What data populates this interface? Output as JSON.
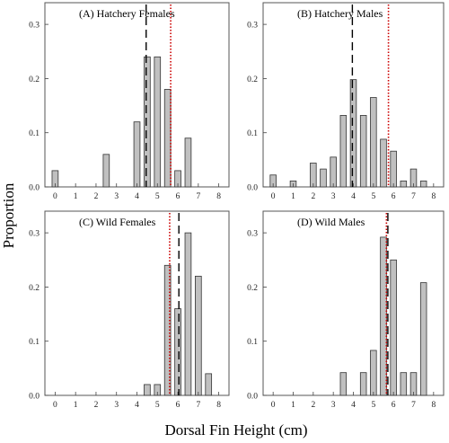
{
  "figure": {
    "ylabel": "Proportion",
    "xlabel": "Dorsal Fin Height (cm)"
  },
  "chart_data": [
    {
      "type": "bar",
      "title": "(A) Hatchery Females",
      "xlim": [
        -0.5,
        8.5
      ],
      "ylim": [
        0,
        0.34
      ],
      "xticks": [
        "0",
        "1",
        "2",
        "3",
        "4",
        "5",
        "6",
        "7",
        "8"
      ],
      "yticks": [
        "0.0",
        "0.1",
        "0.2",
        "0.3"
      ],
      "x": [
        0,
        2.5,
        4,
        4.5,
        5,
        5.5,
        6,
        6.5
      ],
      "values": [
        0.03,
        0.06,
        0.12,
        0.24,
        0.24,
        0.18,
        0.03,
        0.09
      ],
      "vlines": [
        {
          "x": 4.45,
          "style": "dashed",
          "color": "#000000"
        },
        {
          "x": 5.65,
          "style": "dotted",
          "color": "#cc0000"
        }
      ]
    },
    {
      "type": "bar",
      "title": "(B) Hatchery Males",
      "xlim": [
        -0.5,
        8.5
      ],
      "ylim": [
        0,
        0.34
      ],
      "xticks": [
        "0",
        "1",
        "2",
        "3",
        "4",
        "5",
        "6",
        "7",
        "8"
      ],
      "yticks": [
        "0.0",
        "0.1",
        "0.2",
        "0.3"
      ],
      "x": [
        0,
        1,
        2,
        2.5,
        3,
        3.5,
        4,
        4.5,
        5,
        5.5,
        6,
        6.5,
        7,
        7.5
      ],
      "values": [
        0.022,
        0.011,
        0.044,
        0.033,
        0.055,
        0.132,
        0.198,
        0.132,
        0.165,
        0.088,
        0.066,
        0.011,
        0.033,
        0.011
      ],
      "vlines": [
        {
          "x": 3.95,
          "style": "dashed",
          "color": "#000000"
        },
        {
          "x": 5.75,
          "style": "dotted",
          "color": "#cc0000"
        }
      ]
    },
    {
      "type": "bar",
      "title": "(C) Wild Females",
      "xlim": [
        -0.5,
        8.5
      ],
      "ylim": [
        0,
        0.34
      ],
      "xticks": [
        "0",
        "1",
        "2",
        "3",
        "4",
        "5",
        "6",
        "7",
        "8"
      ],
      "yticks": [
        "0.0",
        "0.1",
        "0.2",
        "0.3"
      ],
      "x": [
        4.5,
        5,
        5.5,
        6,
        6.5,
        7,
        7.5
      ],
      "values": [
        0.02,
        0.02,
        0.24,
        0.16,
        0.3,
        0.22,
        0.04
      ],
      "vlines": [
        {
          "x": 5.6,
          "style": "dotted",
          "color": "#cc0000"
        },
        {
          "x": 6.05,
          "style": "dashed",
          "color": "#000000"
        }
      ]
    },
    {
      "type": "bar",
      "title": "(D) Wild Males",
      "xlim": [
        -0.5,
        8.5
      ],
      "ylim": [
        0,
        0.34
      ],
      "xticks": [
        "0",
        "1",
        "2",
        "3",
        "4",
        "5",
        "6",
        "7",
        "8"
      ],
      "yticks": [
        "0.0",
        "0.1",
        "0.2",
        "0.3"
      ],
      "x": [
        3.5,
        4.5,
        5,
        5.5,
        6,
        6.5,
        7,
        7.5
      ],
      "values": [
        0.042,
        0.042,
        0.083,
        0.292,
        0.25,
        0.042,
        0.042,
        0.208
      ],
      "vlines": [
        {
          "x": 5.65,
          "style": "dotted",
          "color": "#cc0000"
        },
        {
          "x": 5.72,
          "style": "dashed",
          "color": "#000000"
        }
      ]
    }
  ],
  "colors": {
    "bar_fill": "#c0c0c0",
    "bar_stroke": "#333333",
    "mean_line": "#000000",
    "median_line": "#cc0000"
  }
}
